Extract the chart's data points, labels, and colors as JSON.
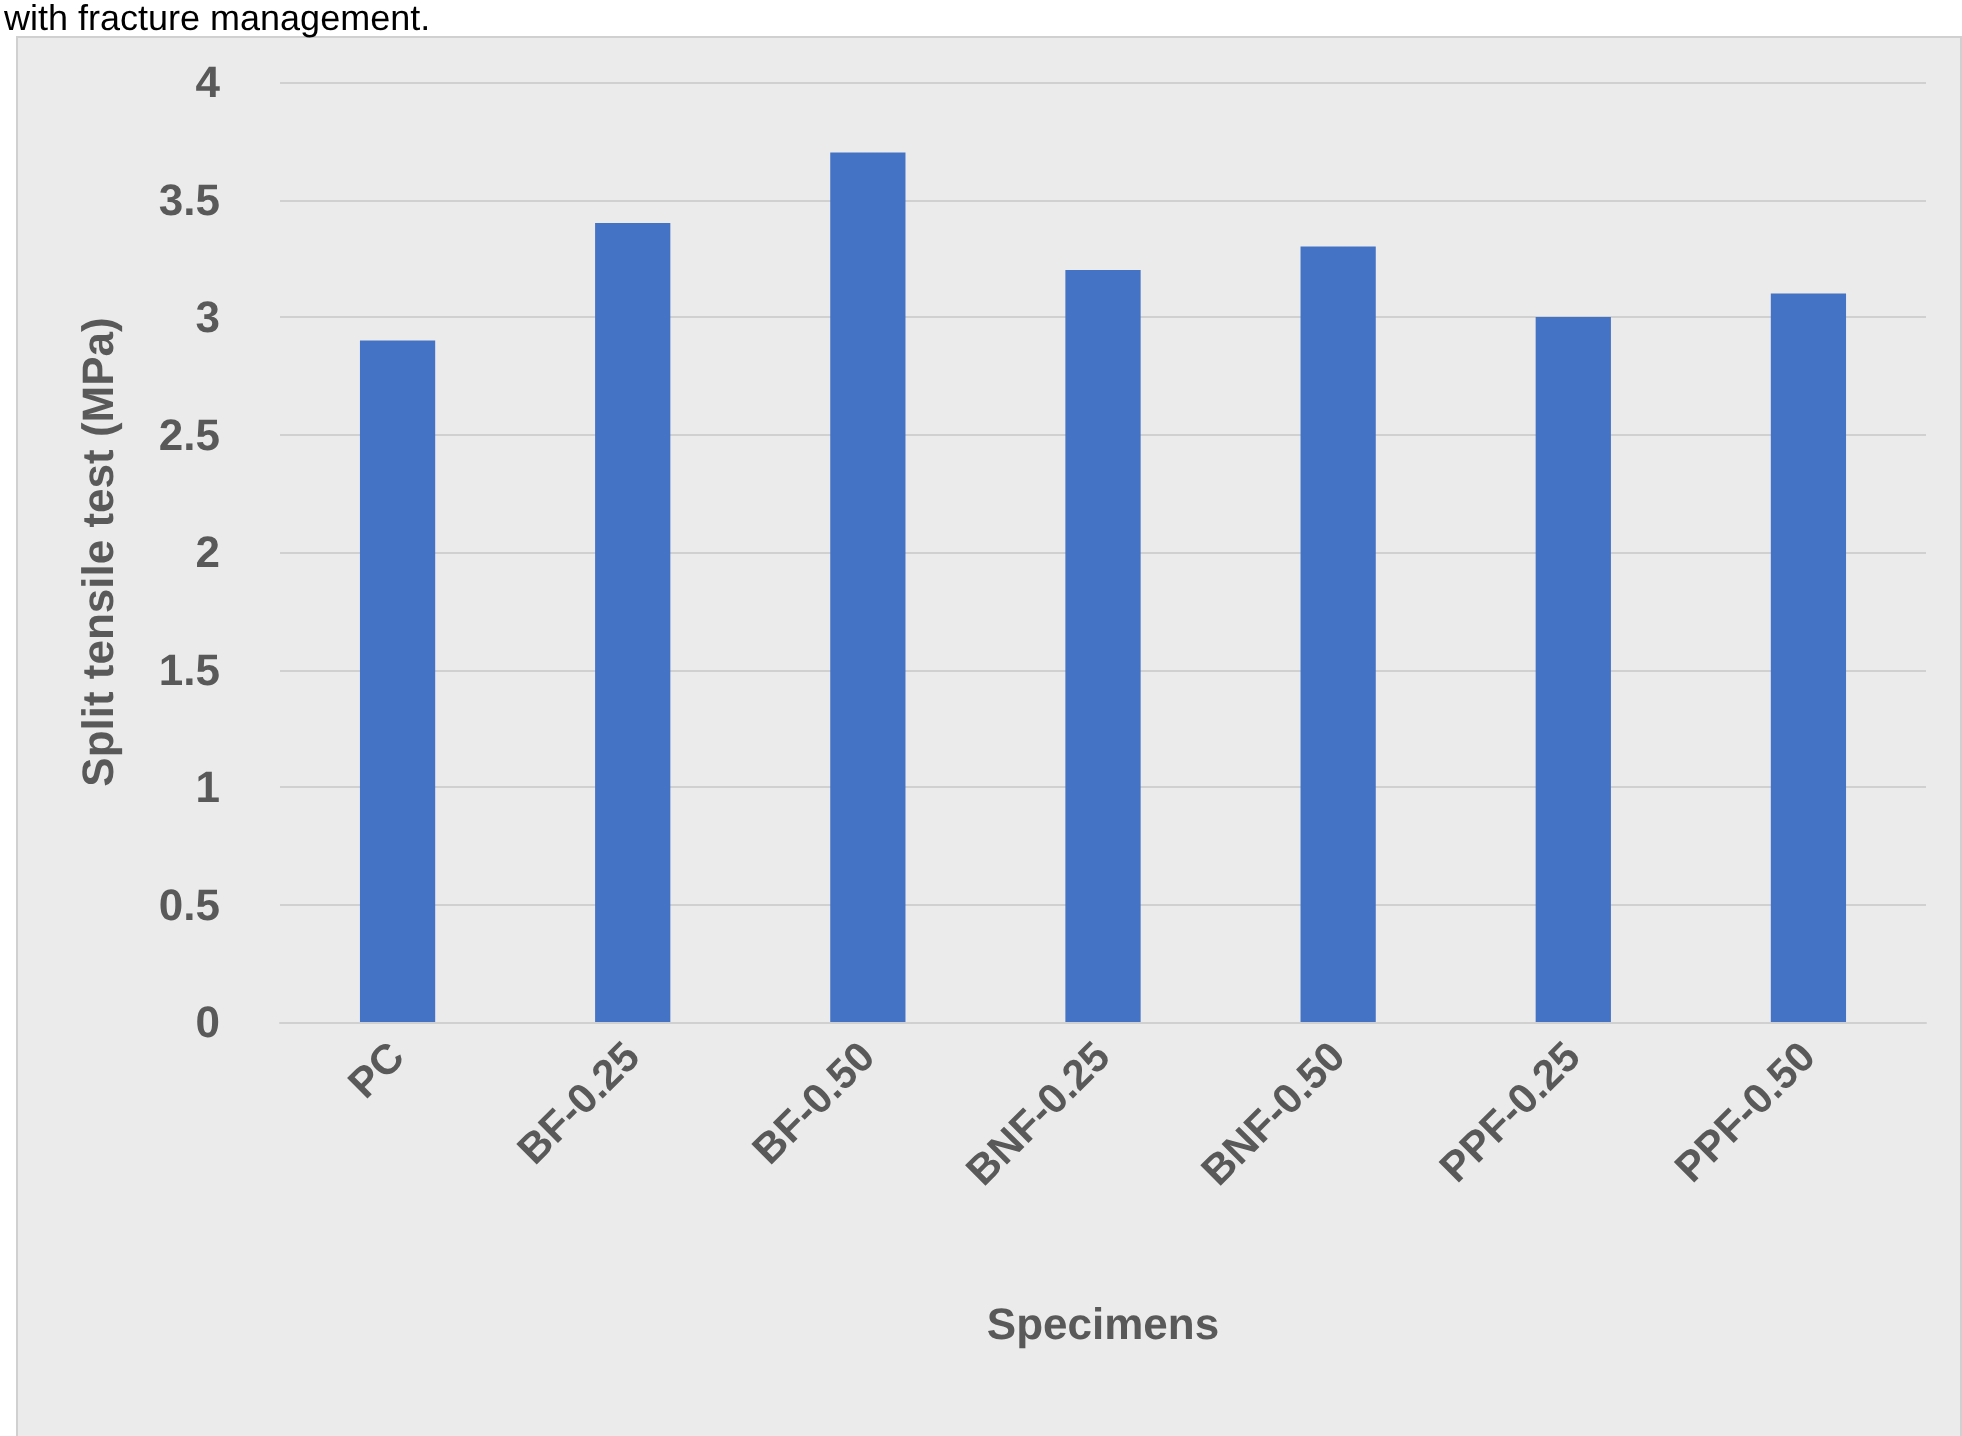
{
  "chart_data": {
    "type": "bar",
    "xlabel": "Specimens",
    "ylabel": "Split tensile test (MPa)",
    "annotations": [
      "with fracture management."
    ],
    "categories": [
      "PC",
      "BF-0.25",
      "BF-0.50",
      "BNF-0.25",
      "BNF-0.50",
      "PPF-0.25",
      "PPF-0.50"
    ],
    "values": [
      2.9,
      3.4,
      3.7,
      3.2,
      3.3,
      3.0,
      3.1
    ],
    "color": "#4472c4",
    "ylim": [
      0,
      4
    ],
    "yticks": [
      0,
      0.5,
      1,
      1.5,
      2,
      2.5,
      3,
      3.5,
      4
    ],
    "grid": "y"
  }
}
